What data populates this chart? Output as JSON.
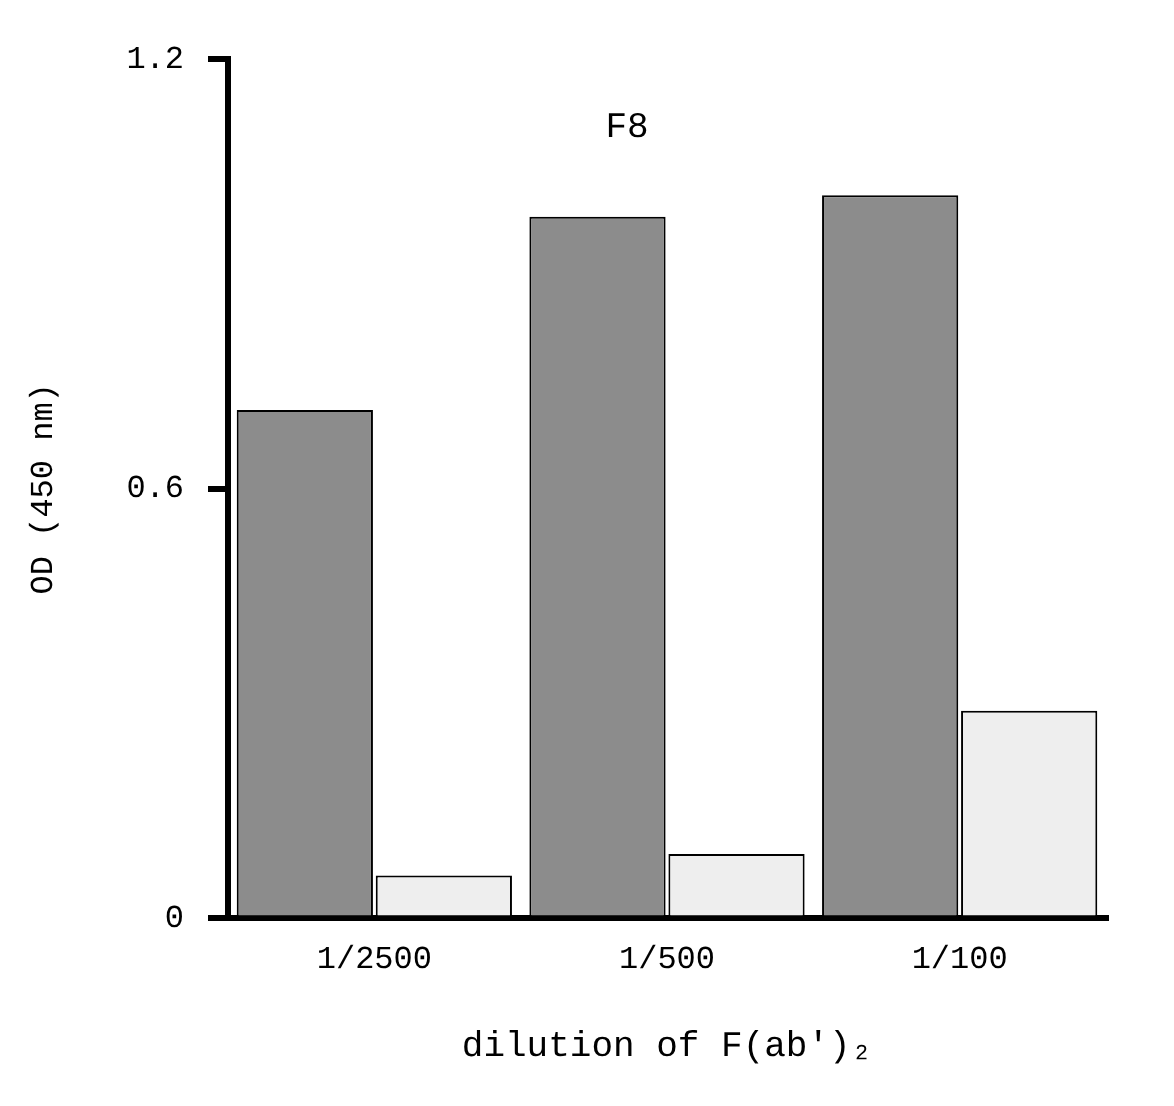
{
  "chart_data": {
    "type": "bar",
    "title": "F8",
    "xlabel": "dilution of F(ab')₂",
    "ylabel": "OD (450 nm)",
    "categories": [
      "1/2500",
      "1/500",
      "1/100"
    ],
    "series": [
      {
        "color": "#8c8c8c",
        "values": [
          0.71,
          0.98,
          1.01
        ]
      },
      {
        "color": "#eeeeee",
        "values": [
          0.06,
          0.09,
          0.29
        ]
      }
    ],
    "ylim": [
      0,
      1.2
    ],
    "yticks": [
      0,
      0.6,
      1.2
    ],
    "grid": false,
    "legend": false
  }
}
